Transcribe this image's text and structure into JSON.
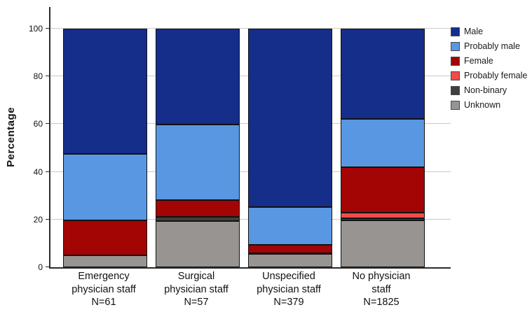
{
  "chart_data": {
    "type": "bar",
    "stacked": true,
    "orientation": "vertical",
    "title": "",
    "xlabel": "",
    "ylabel": "Percentage",
    "ylim": [
      0,
      100
    ],
    "yticks": [
      0,
      20,
      40,
      60,
      80,
      100
    ],
    "grid": true,
    "legend_position": "top-right",
    "categories": [
      {
        "label": "Emergency physician staff N=61",
        "lines": [
          "Emergency",
          "physician staff",
          "N=61"
        ]
      },
      {
        "label": "Surgical physician staff N=57",
        "lines": [
          "Surgical",
          "physician staff",
          "N=57"
        ]
      },
      {
        "label": "Unspecified physician staff N=379",
        "lines": [
          "Unspecified",
          "physician staff",
          "N=379"
        ]
      },
      {
        "label": "No physician staff N=1825",
        "lines": [
          "No physician",
          "staff",
          "N=1825"
        ]
      }
    ],
    "series": [
      {
        "name": "Male",
        "color": "#152e8a",
        "values": [
          52.5,
          40.4,
          74.7,
          37.8
        ]
      },
      {
        "name": "Probably male",
        "color": "#5997e2",
        "values": [
          27.9,
          31.6,
          15.8,
          20.4
        ]
      },
      {
        "name": "Female",
        "color": "#a30505",
        "values": [
          14.8,
          7.0,
          3.7,
          18.9
        ]
      },
      {
        "name": "Probably female",
        "color": "#ef4c4c",
        "values": [
          0,
          0,
          0,
          2.4
        ]
      },
      {
        "name": "Non-binary",
        "color": "#3f3f3f",
        "values": [
          0,
          1.8,
          0.3,
          0.8
        ]
      },
      {
        "name": "Unknown",
        "color": "#989491",
        "values": [
          4.9,
          19.3,
          5.5,
          19.7
        ]
      }
    ],
    "colors": {
      "gridline": "#c9c9c9",
      "axis": "#2b2b2b",
      "segment_border": "#121212"
    }
  }
}
